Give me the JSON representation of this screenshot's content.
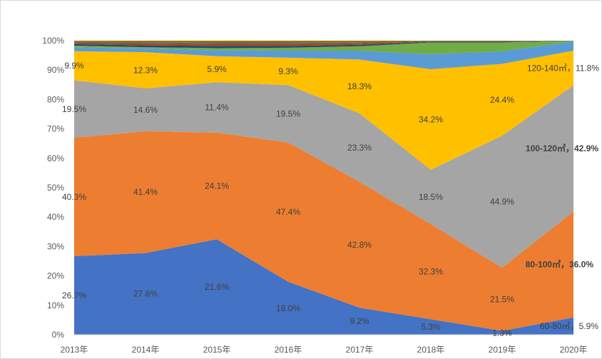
{
  "chart_data": {
    "type": "area",
    "stacked": true,
    "ylim": [
      0,
      100
    ],
    "y_ticks": [
      "0%",
      "10%",
      "20%",
      "30%",
      "40%",
      "50%",
      "60%",
      "70%",
      "80%",
      "90%",
      "100%"
    ],
    "categories": [
      "2013年",
      "2014年",
      "2015年",
      "2016年",
      "2017年",
      "2018年",
      "2019年",
      "2020年"
    ],
    "series": [
      {
        "color": "#4472C4",
        "values": [
          26.7,
          27.8,
          21.6,
          18.0,
          9.2,
          5.3,
          1.3,
          5.9
        ],
        "labels": [
          "26.7%",
          "27.8%",
          "21.6%",
          "18.0%",
          "9.2%",
          "5.3%",
          "1.3%",
          "60-80㎡，5.9%"
        ]
      },
      {
        "color": "#ED7D31",
        "values": [
          40.3,
          41.4,
          24.1,
          47.4,
          42.8,
          32.3,
          21.5,
          36.0
        ],
        "labels": [
          "40.3%",
          "41.4%",
          "24.1%",
          "47.4%",
          "42.8%",
          "32.3%",
          "21.5%",
          "80-100㎡，36.0%"
        ]
      },
      {
        "color": "#A5A5A5",
        "values": [
          19.5,
          14.6,
          11.4,
          19.5,
          23.3,
          18.5,
          44.9,
          42.9
        ],
        "labels": [
          "19.5%",
          "14.6%",
          "11.4%",
          "19.5%",
          "23.3%",
          "18.5%",
          "44.9%",
          "100-120㎡，42.9%"
        ]
      },
      {
        "color": "#FFC000",
        "values": [
          9.9,
          12.3,
          5.9,
          9.3,
          18.3,
          34.2,
          24.4,
          11.8
        ],
        "labels": [
          "9.9%",
          "12.3%",
          "5.9%",
          "9.3%",
          "18.3%",
          "34.2%",
          "24.4%",
          "120-140㎡，11.8%"
        ]
      },
      {
        "color": "#5B9BD5",
        "values": [
          1.4,
          1.2,
          1.3,
          2.4,
          3.0,
          5.1,
          4.3,
          3.1
        ]
      },
      {
        "color": "#70AD47",
        "values": [
          0.5,
          0.5,
          0.5,
          1.0,
          1.5,
          4.0,
          3.0,
          0.2
        ]
      },
      {
        "color": "#264478",
        "values": [
          0.5,
          0.6,
          0.5,
          0.6,
          0.5,
          0.2,
          0.2,
          0.05
        ]
      },
      {
        "color": "#9E480E",
        "values": [
          0.4,
          0.6,
          0.4,
          0.6,
          0.5,
          0.15,
          0.15,
          0.02
        ]
      },
      {
        "color": "#636363",
        "values": [
          0.4,
          0.5,
          0.4,
          0.6,
          0.4,
          0.15,
          0.15,
          0.02
        ]
      },
      {
        "color": "#997300",
        "values": [
          0.4,
          0.5,
          0.4,
          0.6,
          0.5,
          0.1,
          0.1,
          0.01
        ]
      }
    ]
  }
}
